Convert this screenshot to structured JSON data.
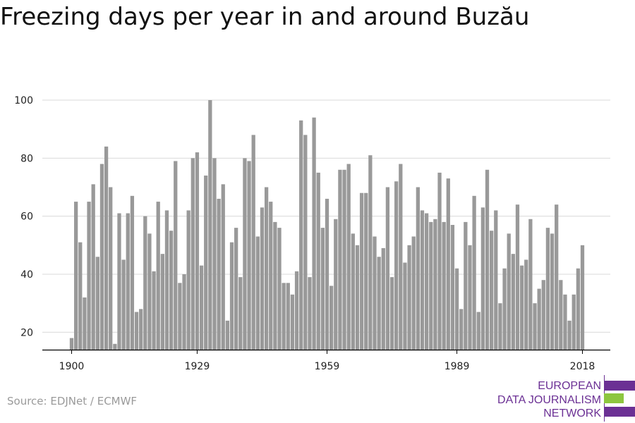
{
  "title": "Freezing days per year in and around Buzău",
  "source": "Source: EDJNet / ECMWF",
  "logo": {
    "line1": "EUROPEAN",
    "line2": "DATA JOURNALISM",
    "line3": "NETWORK",
    "colors": {
      "purple": "#6b3094",
      "green": "#8dc63f"
    }
  },
  "chart_data": {
    "type": "bar",
    "title": "Freezing days per year in and around Buzău",
    "xlabel": "",
    "ylabel": "",
    "x_range": [
      1900,
      2018
    ],
    "ylim": [
      14,
      100
    ],
    "y_ticks": [
      20,
      40,
      60,
      80,
      100
    ],
    "x_ticks": [
      1900,
      1929,
      1959,
      1989,
      2018
    ],
    "grid": true,
    "bar_color": "#999999",
    "years": [
      1900,
      1901,
      1902,
      1903,
      1904,
      1905,
      1906,
      1907,
      1908,
      1909,
      1910,
      1911,
      1912,
      1913,
      1914,
      1915,
      1916,
      1917,
      1918,
      1919,
      1920,
      1921,
      1922,
      1923,
      1924,
      1925,
      1926,
      1927,
      1928,
      1929,
      1930,
      1931,
      1932,
      1933,
      1934,
      1935,
      1936,
      1937,
      1938,
      1939,
      1940,
      1941,
      1942,
      1943,
      1944,
      1945,
      1946,
      1947,
      1948,
      1949,
      1950,
      1951,
      1952,
      1953,
      1954,
      1955,
      1956,
      1957,
      1958,
      1959,
      1960,
      1961,
      1962,
      1963,
      1964,
      1965,
      1966,
      1967,
      1968,
      1969,
      1970,
      1971,
      1972,
      1973,
      1974,
      1975,
      1976,
      1977,
      1978,
      1979,
      1980,
      1981,
      1982,
      1983,
      1984,
      1985,
      1986,
      1987,
      1988,
      1989,
      1990,
      1991,
      1992,
      1993,
      1994,
      1995,
      1996,
      1997,
      1998,
      1999,
      2000,
      2001,
      2002,
      2003,
      2004,
      2005,
      2006,
      2007,
      2008,
      2009,
      2010,
      2011,
      2012,
      2013,
      2014,
      2015,
      2016,
      2017,
      2018
    ],
    "values": [
      18,
      65,
      51,
      32,
      65,
      71,
      46,
      78,
      84,
      70,
      16,
      61,
      45,
      61,
      67,
      27,
      28,
      60,
      54,
      41,
      65,
      47,
      62,
      55,
      79,
      37,
      40,
      62,
      80,
      82,
      43,
      74,
      100,
      80,
      66,
      71,
      24,
      51,
      56,
      39,
      80,
      79,
      88,
      53,
      63,
      70,
      65,
      58,
      56,
      37,
      37,
      33,
      41,
      93,
      88,
      39,
      94,
      75,
      56,
      66,
      36,
      59,
      76,
      76,
      78,
      54,
      50,
      68,
      68,
      81,
      53,
      46,
      49,
      70,
      39,
      72,
      78,
      44,
      50,
      53,
      70,
      62,
      61,
      58,
      59,
      75,
      58,
      73,
      57,
      42,
      28,
      58,
      50,
      67,
      27,
      63,
      76,
      55,
      62,
      30,
      42,
      54,
      47,
      64,
      43,
      45,
      59,
      30,
      35,
      38,
      56,
      54,
      64,
      38,
      33,
      24,
      33,
      42,
      50
    ]
  }
}
